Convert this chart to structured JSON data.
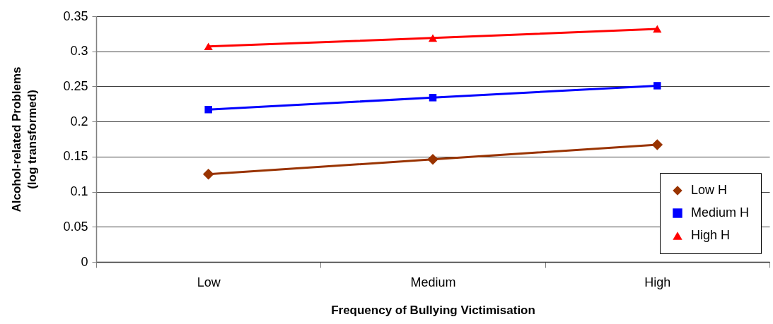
{
  "chart_data": {
    "type": "line",
    "xlabel": "Frequency of Bullying Victimisation",
    "ylabel": "Alcohol-related Problems\n(log transformed)",
    "categories": [
      "Low",
      "Medium",
      "High"
    ],
    "series": [
      {
        "name": "Low H",
        "color": "#993300",
        "marker": "diamond",
        "values": [
          0.125,
          0.146,
          0.167
        ]
      },
      {
        "name": "Medium H",
        "color": "#0000ff",
        "marker": "square",
        "values": [
          0.217,
          0.234,
          0.251
        ]
      },
      {
        "name": "High H",
        "color": "#ff0000",
        "marker": "triangle",
        "values": [
          0.307,
          0.319,
          0.332
        ]
      }
    ],
    "ylim": [
      0,
      0.35
    ],
    "yticks": [
      0,
      0.05,
      0.1,
      0.15,
      0.2,
      0.25,
      0.3,
      0.35
    ],
    "grid": "y",
    "legend": "bottom right",
    "line_style": "solid"
  }
}
